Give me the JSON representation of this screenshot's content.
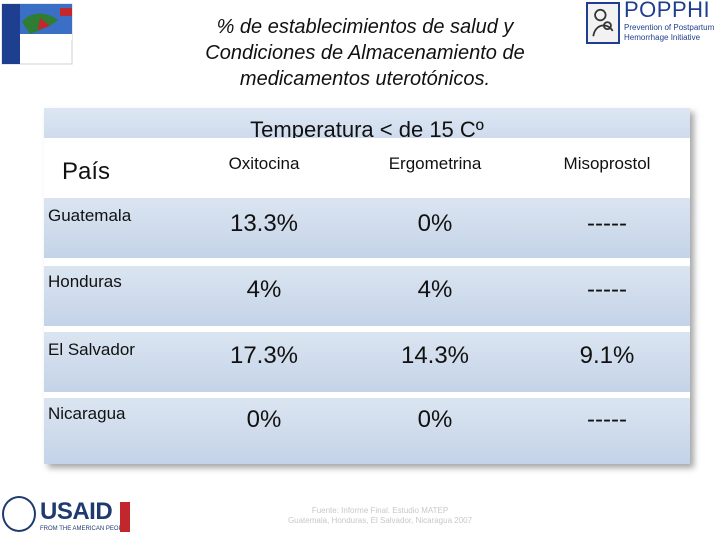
{
  "title": {
    "line1": "% de establecimientos de salud  y",
    "line2": "Condiciones de Almacenamiento de",
    "line3": "medicamentos uterotónicos."
  },
  "logos": {
    "popphi": {
      "name": "POPPHI",
      "tagline": "Prevention of Postpartum Hemorrhage Initiative"
    },
    "usaid": {
      "name": "USAID",
      "subtitle": "FROM THE AMERICAN PEOPLE"
    }
  },
  "table": {
    "banner": "Temperatura < de 15 Cº",
    "country_header": "País",
    "columns": [
      "Oxitocina",
      "Ergometrina",
      "Misoprostol"
    ],
    "rows": [
      {
        "country": "Guatemala",
        "values": [
          "13.3%",
          "0%",
          "-----"
        ]
      },
      {
        "country": "Honduras",
        "values": [
          "4%",
          "4%",
          "-----"
        ]
      },
      {
        "country": "El Salvador",
        "values": [
          "17.3%",
          "14.3%",
          "9.1%"
        ]
      },
      {
        "country": "Nicaragua",
        "values": [
          "0%",
          "0%",
          "-----"
        ]
      }
    ]
  },
  "source": {
    "line1": "Fuente: Informe Final. Estudio MATEP",
    "line2": "Guatemala, Honduras, El Salvador, Nicaragua 2007"
  },
  "colors": {
    "row_light": "#dbe5f1",
    "row_dark": "#c4d3e8",
    "brand_blue": "#1e3f8f"
  }
}
